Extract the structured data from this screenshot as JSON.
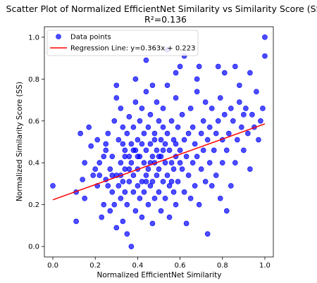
{
  "chart_data": {
    "type": "scatter",
    "title": "Scatter Plot of Normalized EfficientNet Similarity vs Similarity Score (SS)",
    "subtitle": "R²=0.136",
    "xlabel": "Normalized EfficientNet Similarity",
    "ylabel": "Normalized Similarity Score (SS)",
    "xlim": [
      -0.04,
      1.04
    ],
    "ylim": [
      -0.05,
      1.05
    ],
    "xticks": [
      "0.0",
      "0.2",
      "0.4",
      "0.6",
      "0.8",
      "1.0"
    ],
    "yticks": [
      "0.0",
      "0.2",
      "0.4",
      "0.6",
      "0.8",
      "1.0"
    ],
    "grid": false,
    "legend_position": "top-left",
    "colors": {
      "points": "#0000ff",
      "regression": "#ff0000"
    },
    "series": [
      {
        "name": "Data points",
        "kind": "scatter",
        "points": [
          [
            0.0,
            0.29
          ],
          [
            0.11,
            0.12
          ],
          [
            0.11,
            0.26
          ],
          [
            0.13,
            0.54
          ],
          [
            0.14,
            0.32
          ],
          [
            0.15,
            0.23
          ],
          [
            0.15,
            0.4
          ],
          [
            0.17,
            0.57
          ],
          [
            0.18,
            0.48
          ],
          [
            0.19,
            0.34
          ],
          [
            0.2,
            0.37
          ],
          [
            0.21,
            0.29
          ],
          [
            0.21,
            0.51
          ],
          [
            0.22,
            0.4
          ],
          [
            0.23,
            0.14
          ],
          [
            0.24,
            0.2
          ],
          [
            0.25,
            0.32
          ],
          [
            0.25,
            0.46
          ],
          [
            0.26,
            0.29
          ],
          [
            0.26,
            0.54
          ],
          [
            0.27,
            0.37
          ],
          [
            0.27,
            0.17
          ],
          [
            0.28,
            0.26
          ],
          [
            0.28,
            0.43
          ],
          [
            0.29,
            0.2
          ],
          [
            0.29,
            0.6
          ],
          [
            0.3,
            0.71
          ],
          [
            0.3,
            0.34
          ],
          [
            0.3,
            0.09
          ],
          [
            0.31,
            0.51
          ],
          [
            0.31,
            0.29
          ],
          [
            0.32,
            0.66
          ],
          [
            0.32,
            0.23
          ],
          [
            0.32,
            0.4
          ],
          [
            0.33,
            0.57
          ],
          [
            0.33,
            0.12
          ],
          [
            0.33,
            0.31
          ],
          [
            0.34,
            0.46
          ],
          [
            0.34,
            0.26
          ],
          [
            0.34,
            0.37
          ],
          [
            0.35,
            0.06
          ],
          [
            0.35,
            0.54
          ],
          [
            0.35,
            0.2
          ],
          [
            0.36,
            0.43
          ],
          [
            0.36,
            0.62
          ],
          [
            0.36,
            0.31
          ],
          [
            0.37,
            0.49
          ],
          [
            0.37,
            0.4
          ],
          [
            0.37,
            0.0
          ],
          [
            0.38,
            0.26
          ],
          [
            0.38,
            0.57
          ],
          [
            0.38,
            0.34
          ],
          [
            0.39,
            0.69
          ],
          [
            0.39,
            0.17
          ],
          [
            0.39,
            0.46
          ],
          [
            0.4,
            0.37
          ],
          [
            0.4,
            0.29
          ],
          [
            0.4,
            0.51
          ],
          [
            0.41,
            0.23
          ],
          [
            0.41,
            0.43
          ],
          [
            0.41,
            0.6
          ],
          [
            0.42,
            0.31
          ],
          [
            0.42,
            0.14
          ],
          [
            0.42,
            0.66
          ],
          [
            0.43,
            0.4
          ],
          [
            0.43,
            0.54
          ],
          [
            0.43,
            0.26
          ],
          [
            0.44,
            0.74
          ],
          [
            0.44,
            0.34
          ],
          [
            0.44,
            0.46
          ],
          [
            0.45,
            0.2
          ],
          [
            0.45,
            0.57
          ],
          [
            0.45,
            0.37
          ],
          [
            0.46,
            0.29
          ],
          [
            0.46,
            0.49
          ],
          [
            0.46,
            0.63
          ],
          [
            0.47,
            0.43
          ],
          [
            0.47,
            0.11
          ],
          [
            0.47,
            0.31
          ],
          [
            0.48,
            0.54
          ],
          [
            0.48,
            0.23
          ],
          [
            0.48,
            0.4
          ],
          [
            0.49,
            0.69
          ],
          [
            0.49,
            0.34
          ],
          [
            0.49,
            0.46
          ],
          [
            0.5,
            0.26
          ],
          [
            0.5,
            0.6
          ],
          [
            0.5,
            0.37
          ],
          [
            0.51,
            0.51
          ],
          [
            0.51,
            0.17
          ],
          [
            0.51,
            0.43
          ],
          [
            0.52,
            0.31
          ],
          [
            0.52,
            0.57
          ],
          [
            0.52,
            0.66
          ],
          [
            0.53,
            0.4
          ],
          [
            0.53,
            0.23
          ],
          [
            0.53,
            0.49
          ],
          [
            0.54,
            0.34
          ],
          [
            0.54,
            0.54
          ],
          [
            0.54,
            0.77
          ],
          [
            0.55,
            0.29
          ],
          [
            0.55,
            0.46
          ],
          [
            0.55,
            0.14
          ],
          [
            0.56,
            0.4
          ],
          [
            0.56,
            0.6
          ],
          [
            0.57,
            0.51
          ],
          [
            0.57,
            0.26
          ],
          [
            0.57,
            0.37
          ],
          [
            0.58,
            0.71
          ],
          [
            0.58,
            0.43
          ],
          [
            0.58,
            0.2
          ],
          [
            0.59,
            0.57
          ],
          [
            0.59,
            0.31
          ],
          [
            0.6,
            0.46
          ],
          [
            0.6,
            0.86
          ],
          [
            0.61,
            0.37
          ],
          [
            0.61,
            0.63
          ],
          [
            0.62,
            0.26
          ],
          [
            0.62,
            0.51
          ],
          [
            0.63,
            0.43
          ],
          [
            0.63,
            0.11
          ],
          [
            0.64,
            0.54
          ],
          [
            0.64,
            0.34
          ],
          [
            0.65,
            0.66
          ],
          [
            0.65,
            0.23
          ],
          [
            0.66,
            0.4
          ],
          [
            0.66,
            0.57
          ],
          [
            0.67,
            0.49
          ],
          [
            0.67,
            0.29
          ],
          [
            0.68,
            0.74
          ],
          [
            0.68,
            0.43
          ],
          [
            0.69,
            0.86
          ],
          [
            0.69,
            0.2
          ],
          [
            0.7,
            0.54
          ],
          [
            0.7,
            0.37
          ],
          [
            0.71,
            0.6
          ],
          [
            0.71,
            0.46
          ],
          [
            0.72,
            0.31
          ],
          [
            0.72,
            0.69
          ],
          [
            0.73,
            0.06
          ],
          [
            0.73,
            0.51
          ],
          [
            0.74,
            0.4
          ],
          [
            0.74,
            0.57
          ],
          [
            0.75,
            0.29
          ],
          [
            0.75,
            0.66
          ],
          [
            0.76,
            0.46
          ],
          [
            0.77,
            0.54
          ],
          [
            0.77,
            0.34
          ],
          [
            0.78,
            0.6
          ],
          [
            0.79,
            0.71
          ],
          [
            0.79,
            0.23
          ],
          [
            0.8,
            0.51
          ],
          [
            0.8,
            0.4
          ],
          [
            0.81,
            0.83
          ],
          [
            0.81,
            0.63
          ],
          [
            0.82,
            0.17
          ],
          [
            0.82,
            0.46
          ],
          [
            0.83,
            0.54
          ],
          [
            0.84,
            0.66
          ],
          [
            0.84,
            0.29
          ],
          [
            0.85,
            0.6
          ],
          [
            0.86,
            0.86
          ],
          [
            0.86,
            0.4
          ],
          [
            0.87,
            0.51
          ],
          [
            0.88,
            0.69
          ],
          [
            0.88,
            0.77
          ],
          [
            0.89,
            0.57
          ],
          [
            0.9,
            0.63
          ],
          [
            0.9,
            0.46
          ],
          [
            0.91,
            0.66
          ],
          [
            0.92,
            0.54
          ],
          [
            0.93,
            0.37
          ],
          [
            0.93,
            0.83
          ],
          [
            0.94,
            0.63
          ],
          [
            0.95,
            0.57
          ],
          [
            0.96,
            0.74
          ],
          [
            0.97,
            0.51
          ],
          [
            0.98,
            0.6
          ],
          [
            0.99,
            0.66
          ],
          [
            1.0,
            0.91
          ],
          [
            1.0,
            1.0
          ],
          [
            0.62,
            0.91
          ],
          [
            0.54,
            0.94
          ],
          [
            0.44,
            0.89
          ],
          [
            0.39,
            0.8
          ],
          [
            0.3,
            0.77
          ],
          [
            0.25,
            0.49
          ],
          [
            0.33,
            0.49
          ],
          [
            0.47,
            0.77
          ],
          [
            0.58,
            0.83
          ],
          [
            0.68,
            0.8
          ],
          [
            0.78,
            0.86
          ],
          [
            0.48,
            0.51
          ],
          [
            0.5,
            0.43
          ],
          [
            0.52,
            0.46
          ],
          [
            0.46,
            0.4
          ],
          [
            0.44,
            0.31
          ],
          [
            0.42,
            0.49
          ],
          [
            0.56,
            0.31
          ],
          [
            0.58,
            0.49
          ],
          [
            0.6,
            0.4
          ],
          [
            0.4,
            0.43
          ],
          [
            0.38,
            0.46
          ],
          [
            0.36,
            0.37
          ],
          [
            0.34,
            0.43
          ],
          [
            0.32,
            0.34
          ],
          [
            0.28,
            0.34
          ],
          [
            0.24,
            0.43
          ],
          [
            0.22,
            0.34
          ]
        ]
      },
      {
        "name": "Regression Line: y=0.363x + 0.223",
        "kind": "line",
        "slope": 0.363,
        "intercept": 0.223,
        "x_range": [
          0.0,
          1.0
        ]
      }
    ]
  }
}
